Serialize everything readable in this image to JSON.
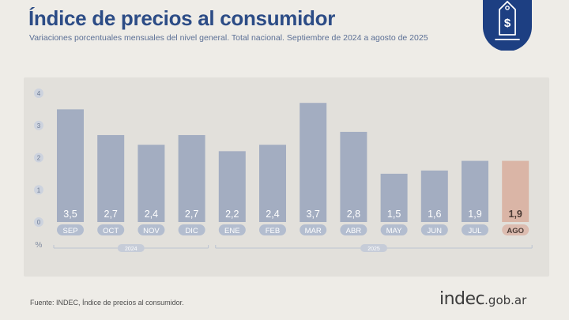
{
  "header": {
    "title": "Índice de precios al consumidor",
    "subtitle": "Variaciones porcentuales mensuales del nivel general. Total nacional. Septiembre de 2024 a agosto de 2025"
  },
  "badge": {
    "icon": "dollar-price-tag-icon",
    "color": "#1d3f82"
  },
  "chart_data": {
    "type": "bar",
    "categories": [
      "SEP",
      "OCT",
      "NOV",
      "DIC",
      "ENE",
      "FEB",
      "MAR",
      "ABR",
      "MAY",
      "JUN",
      "JUL",
      "AGO"
    ],
    "values": [
      3.5,
      2.7,
      2.4,
      2.7,
      2.2,
      2.4,
      3.7,
      2.8,
      1.5,
      1.6,
      1.9,
      1.9
    ],
    "value_labels": [
      "3,5",
      "2,7",
      "2,4",
      "2,7",
      "2,2",
      "2,4",
      "3,7",
      "2,8",
      "1,5",
      "1,6",
      "1,9",
      "1,9"
    ],
    "yticks": [
      "0",
      "1",
      "2",
      "3",
      "4"
    ],
    "ylim": [
      0,
      4
    ],
    "ylabel": "%",
    "highlight_index": 11,
    "year_groups": [
      {
        "label": "2024",
        "from": 0,
        "to": 3
      },
      {
        "label": "2025",
        "from": 4,
        "to": 11
      }
    ],
    "colors": {
      "bar": "#a3adc1",
      "highlight_bar": "#dab5a6",
      "label_pill": "#b3bdcf",
      "highlight_pill": "#dcbcb0"
    }
  },
  "footer": {
    "source": "Fuente: INDEC, Índice de precios al consumidor.",
    "logo_main": "indec",
    "logo_domain": ".gob.ar"
  }
}
